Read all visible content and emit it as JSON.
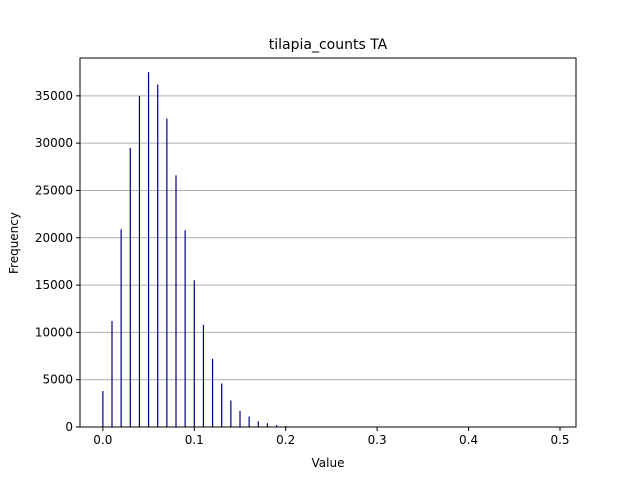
{
  "chart_data": {
    "type": "bar",
    "title": "tilapia_counts TA",
    "xlabel": "Value",
    "ylabel": "Frequency",
    "xlim": [
      -0.025,
      0.5175
    ],
    "ylim": [
      0,
      39000
    ],
    "xticks": [
      0.0,
      0.1,
      0.2,
      0.3,
      0.4,
      0.5
    ],
    "xtick_labels": [
      "0.0",
      "0.1",
      "0.2",
      "0.3",
      "0.4",
      "0.5"
    ],
    "yticks": [
      0,
      5000,
      10000,
      15000,
      20000,
      25000,
      30000,
      35000
    ],
    "ytick_labels": [
      "0",
      "5000",
      "10000",
      "15000",
      "20000",
      "25000",
      "30000",
      "35000"
    ],
    "grid": "y",
    "bar_color": "#00008b",
    "x": [
      0.0,
      0.01,
      0.02,
      0.03,
      0.04,
      0.05,
      0.06,
      0.07,
      0.08,
      0.09,
      0.1,
      0.11,
      0.12,
      0.13,
      0.14,
      0.15,
      0.16,
      0.17,
      0.18,
      0.19,
      0.2,
      0.21
    ],
    "values": [
      3800,
      11200,
      20900,
      29500,
      35000,
      37500,
      36200,
      32600,
      26600,
      20800,
      15500,
      10800,
      7200,
      4600,
      2800,
      1700,
      1100,
      600,
      400,
      200,
      100,
      50
    ]
  }
}
